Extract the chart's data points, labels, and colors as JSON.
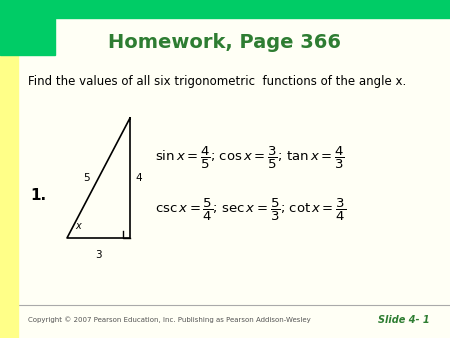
{
  "title": "Homework, Page 366",
  "title_color": "#2E7D32",
  "title_fontsize": 14,
  "bg_color": "#FFFFF5",
  "border_left_color": "#FFFF99",
  "border_top_color": "#00CC66",
  "subtitle": "Find the values of all six trigonometric  functions of the angle ",
  "subtitle_italic": "x",
  "subtitle_end": ".",
  "problem_number": "1.",
  "footer": "Copyright © 2007 Pearson Education, Inc. Publishing as Pearson Addison-Wesley",
  "slide_label": "Slide 4- 1",
  "slide_label_color": "#2E7D32",
  "footer_color": "#555555"
}
